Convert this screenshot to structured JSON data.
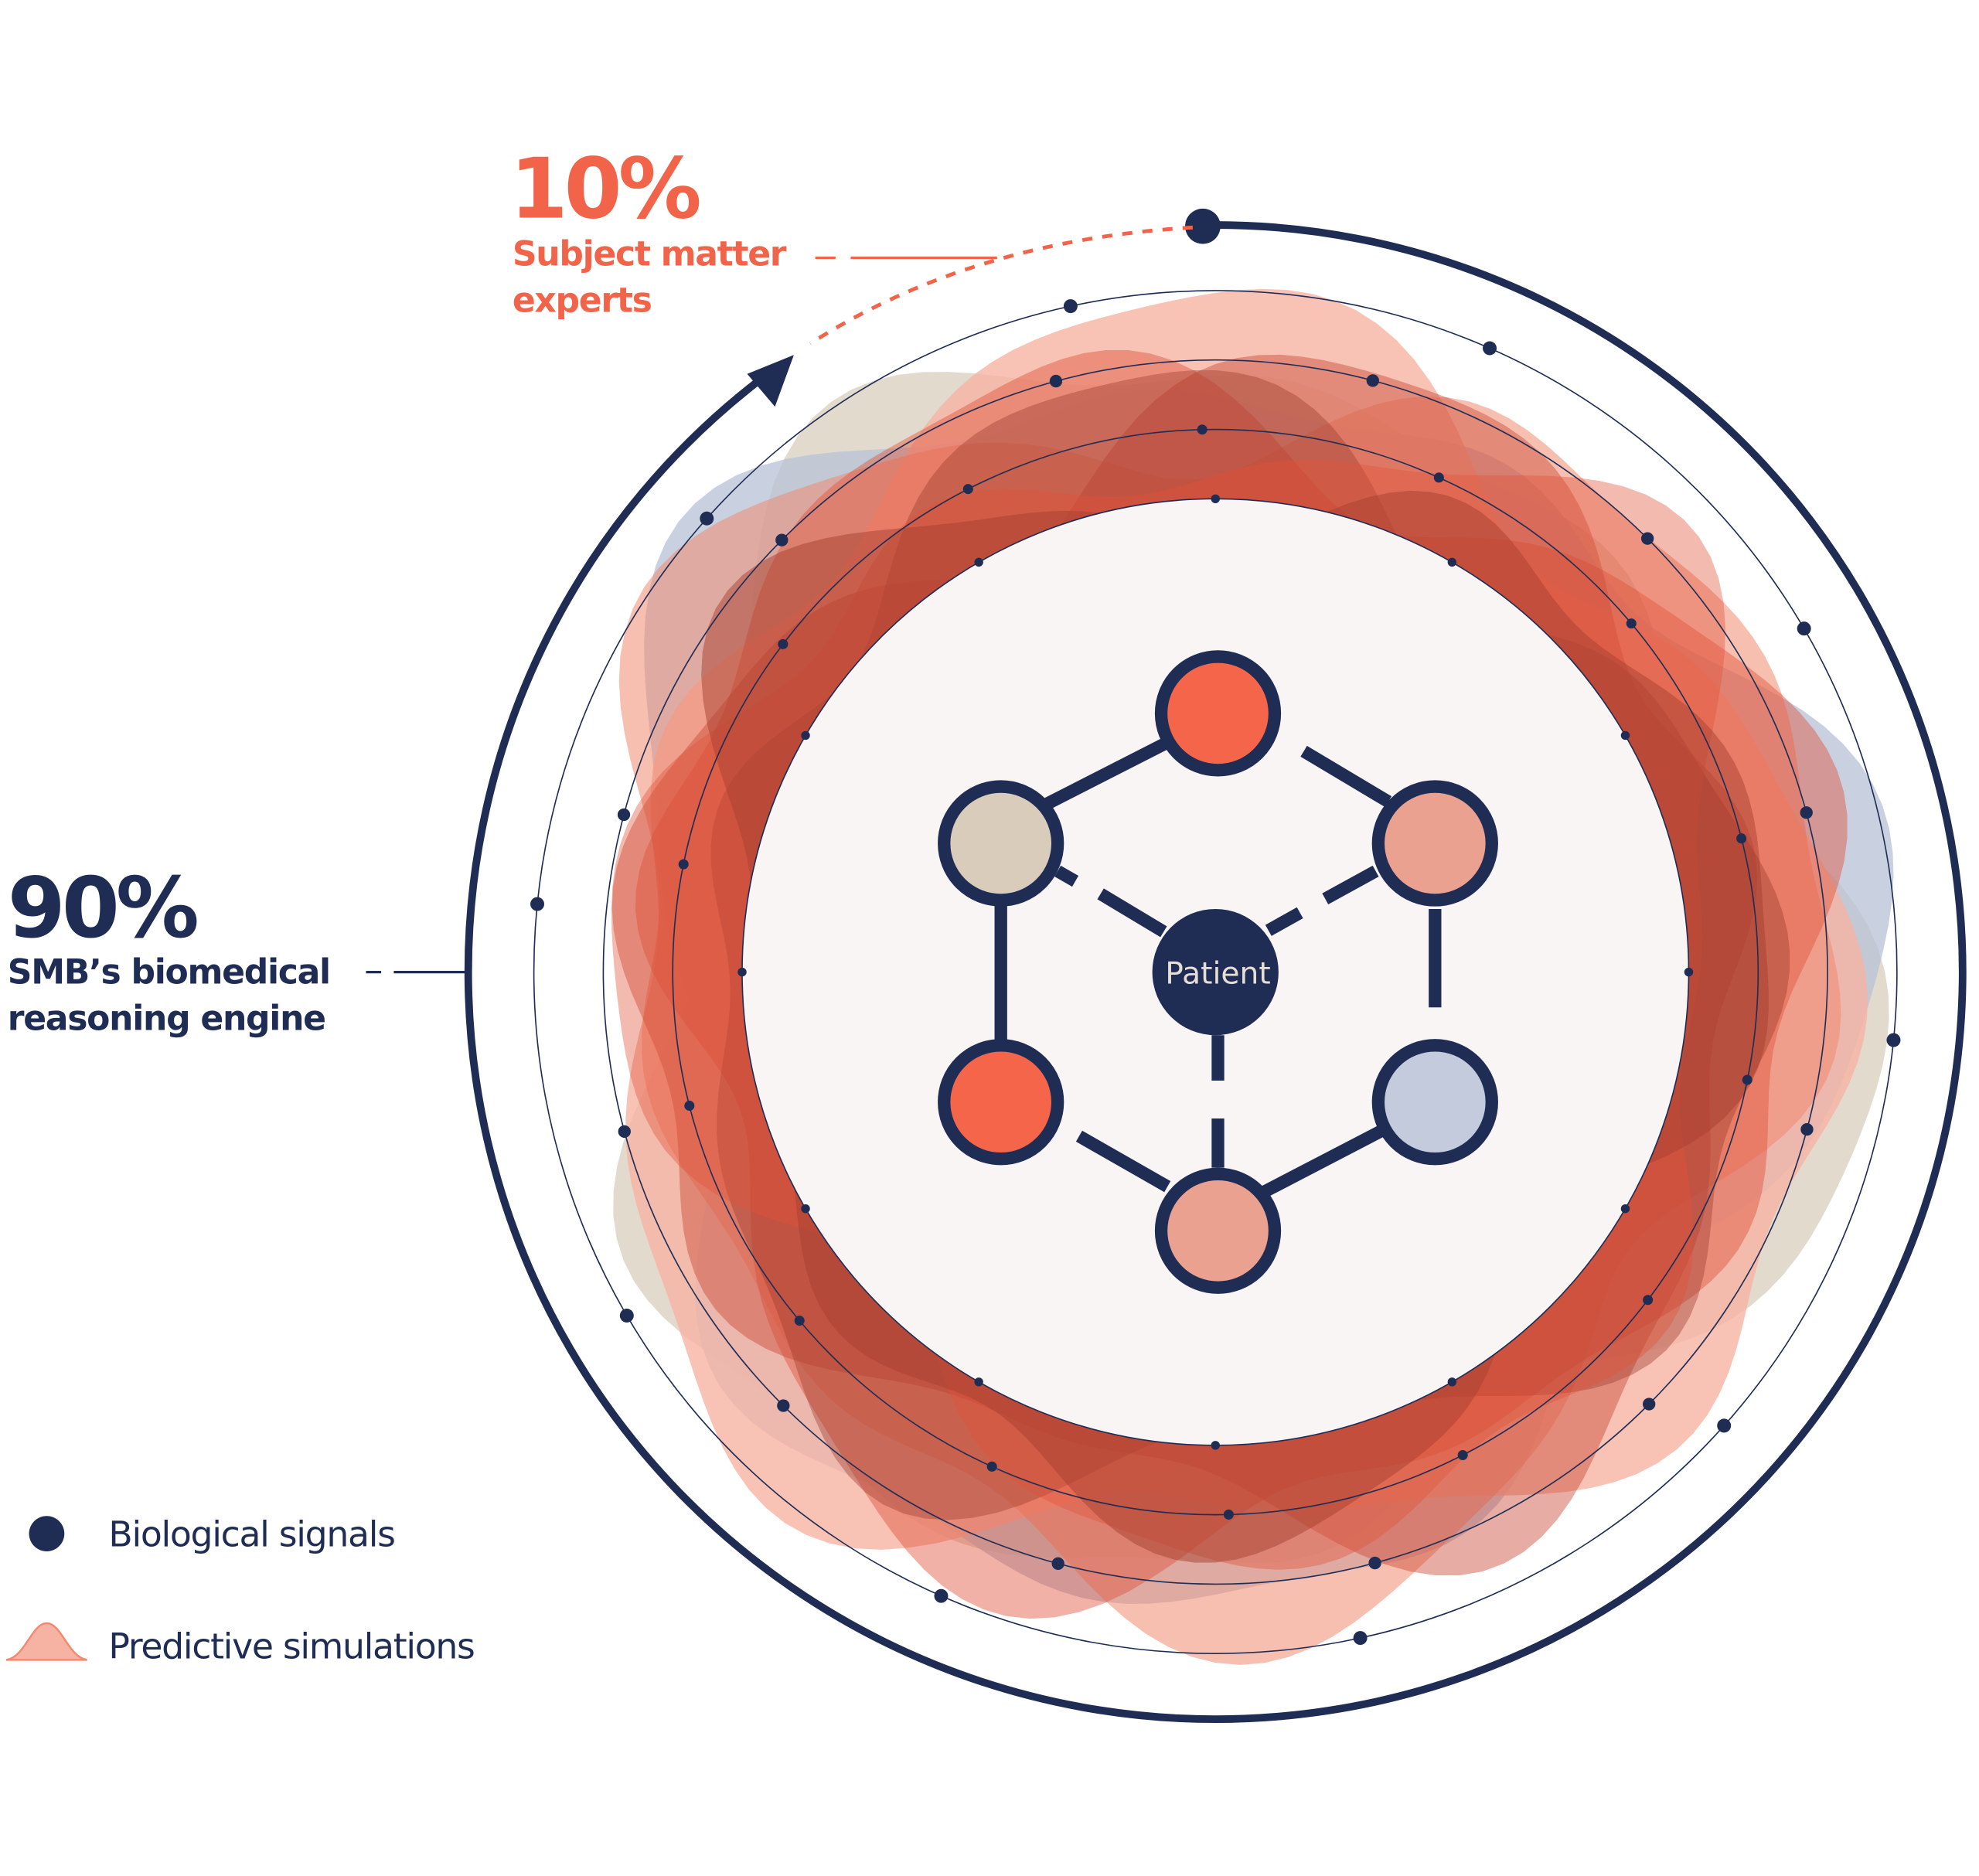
{
  "expert_share": {
    "percent": "10%",
    "label_lines": [
      "Subject matter",
      "experts"
    ]
  },
  "engine_share": {
    "percent": "90%",
    "label_lines": [
      "SMB’s biomedical",
      "reasoning engine"
    ]
  },
  "center_node": "Patient",
  "legend": [
    "Biological signals",
    "Predictive simulations"
  ]
}
